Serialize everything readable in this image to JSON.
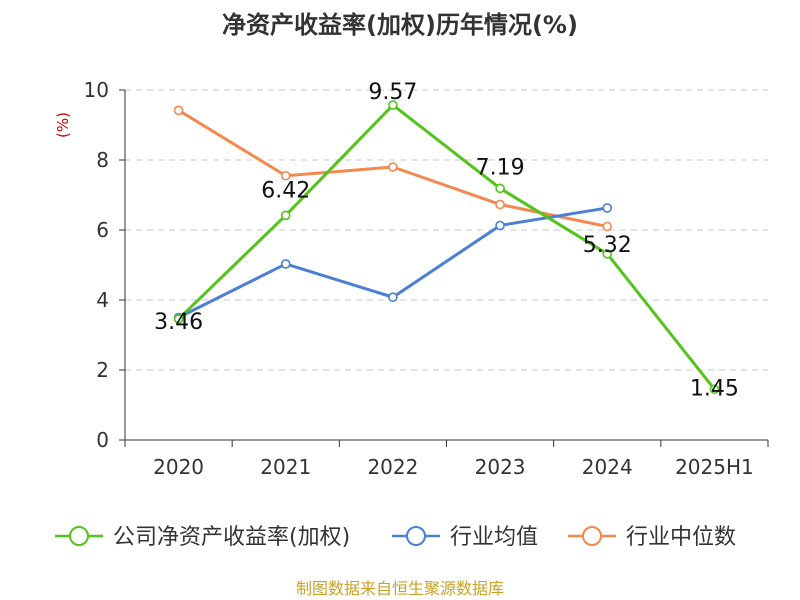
{
  "chart_data": {
    "type": "line",
    "title": "净资产收益率(加权)历年情况(%)",
    "ylabel": "(%)",
    "categories": [
      "2020",
      "2021",
      "2022",
      "2023",
      "2024",
      "2025H1"
    ],
    "ylim": [
      0,
      10
    ],
    "yticks": [
      "0",
      "2",
      "4",
      "6",
      "8",
      "10"
    ],
    "grid": true,
    "legend_position": "bottom",
    "series": [
      {
        "name": "公司净资产收益率(加权)",
        "color": "#52c41a",
        "values": [
          3.46,
          6.42,
          9.57,
          7.19,
          5.32,
          1.45
        ],
        "labels": [
          "3.46",
          "6.42",
          "9.57",
          "7.19",
          "5.32",
          "1.45"
        ]
      },
      {
        "name": "行业均值",
        "color": "#4a7fd4",
        "values": [
          3.5,
          5.03,
          4.08,
          6.13,
          6.63,
          null
        ]
      },
      {
        "name": "行业中位数",
        "color": "#f5884e",
        "values": [
          9.42,
          7.55,
          7.8,
          6.73,
          6.1,
          null
        ]
      }
    ]
  },
  "colors": {
    "unit_label": "#cc0000",
    "source": "#c9a227",
    "grid": "#c8c8c8",
    "axis": "#333333"
  },
  "source": "制图数据来自恒生聚源数据库"
}
